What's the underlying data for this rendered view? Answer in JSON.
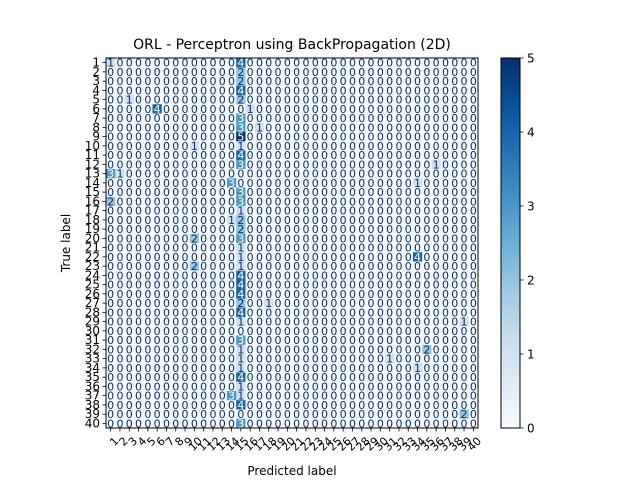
{
  "chart_data": {
    "type": "heatmap",
    "title": "ORL - Perceptron using BackPropagation (2D)",
    "xlabel": "Predicted label",
    "ylabel": "True label",
    "x_tick_labels": [
      "1",
      "2",
      "3",
      "4",
      "5",
      "6",
      "7",
      "8",
      "9",
      "10",
      "11",
      "12",
      "13",
      "14",
      "15",
      "16",
      "17",
      "18",
      "19",
      "20",
      "21",
      "22",
      "23",
      "24",
      "25",
      "26",
      "27",
      "28",
      "29",
      "30",
      "31",
      "32",
      "33",
      "34",
      "35",
      "36",
      "37",
      "38",
      "39",
      "40"
    ],
    "y_tick_labels": [
      "1",
      "2",
      "3",
      "4",
      "5",
      "6",
      "7",
      "8",
      "9",
      "10",
      "11",
      "12",
      "13",
      "14",
      "15",
      "16",
      "17",
      "18",
      "19",
      "20",
      "21",
      "22",
      "23",
      "24",
      "25",
      "26",
      "27",
      "28",
      "29",
      "30",
      "31",
      "32",
      "33",
      "34",
      "35",
      "36",
      "37",
      "38",
      "39",
      "40"
    ],
    "colormap": "Blues",
    "value_range": [
      0,
      5
    ],
    "colorbar_ticks": [
      "0",
      "1",
      "2",
      "3",
      "4",
      "5"
    ],
    "cell_text_color_dark": "#08306b",
    "cell_text_color_light": "#ffffff",
    "matrix_nonzero": [
      {
        "row": 1,
        "col": 1,
        "value": 1
      },
      {
        "row": 1,
        "col": 15,
        "value": 4
      },
      {
        "row": 2,
        "col": 15,
        "value": 2
      },
      {
        "row": 3,
        "col": 15,
        "value": 2
      },
      {
        "row": 4,
        "col": 15,
        "value": 4
      },
      {
        "row": 5,
        "col": 3,
        "value": 1
      },
      {
        "row": 5,
        "col": 15,
        "value": 2
      },
      {
        "row": 6,
        "col": 6,
        "value": 4
      },
      {
        "row": 6,
        "col": 16,
        "value": 1
      },
      {
        "row": 7,
        "col": 15,
        "value": 3
      },
      {
        "row": 8,
        "col": 15,
        "value": 3
      },
      {
        "row": 8,
        "col": 17,
        "value": 1
      },
      {
        "row": 9,
        "col": 15,
        "value": 5
      },
      {
        "row": 10,
        "col": 10,
        "value": 1
      },
      {
        "row": 10,
        "col": 15,
        "value": 1
      },
      {
        "row": 11,
        "col": 15,
        "value": 4
      },
      {
        "row": 12,
        "col": 15,
        "value": 3
      },
      {
        "row": 12,
        "col": 36,
        "value": 1
      },
      {
        "row": 13,
        "col": 1,
        "value": 3
      },
      {
        "row": 13,
        "col": 2,
        "value": 1
      },
      {
        "row": 14,
        "col": 14,
        "value": 3
      },
      {
        "row": 14,
        "col": 34,
        "value": 1
      },
      {
        "row": 15,
        "col": 15,
        "value": 3
      },
      {
        "row": 16,
        "col": 1,
        "value": 2
      },
      {
        "row": 16,
        "col": 15,
        "value": 3
      },
      {
        "row": 17,
        "col": 15,
        "value": 1
      },
      {
        "row": 18,
        "col": 14,
        "value": 1
      },
      {
        "row": 18,
        "col": 15,
        "value": 2
      },
      {
        "row": 19,
        "col": 15,
        "value": 2
      },
      {
        "row": 20,
        "col": 10,
        "value": 2
      },
      {
        "row": 20,
        "col": 15,
        "value": 3
      },
      {
        "row": 21,
        "col": 15,
        "value": 1
      },
      {
        "row": 22,
        "col": 15,
        "value": 1
      },
      {
        "row": 22,
        "col": 34,
        "value": 4
      },
      {
        "row": 23,
        "col": 10,
        "value": 2
      },
      {
        "row": 23,
        "col": 15,
        "value": 1
      },
      {
        "row": 24,
        "col": 15,
        "value": 4
      },
      {
        "row": 25,
        "col": 15,
        "value": 4
      },
      {
        "row": 26,
        "col": 15,
        "value": 4
      },
      {
        "row": 27,
        "col": 15,
        "value": 2
      },
      {
        "row": 27,
        "col": 18,
        "value": 1
      },
      {
        "row": 28,
        "col": 15,
        "value": 4
      },
      {
        "row": 29,
        "col": 15,
        "value": 1
      },
      {
        "row": 29,
        "col": 39,
        "value": 1
      },
      {
        "row": 30,
        "col": 15,
        "value": 0
      },
      {
        "row": 31,
        "col": 15,
        "value": 3
      },
      {
        "row": 32,
        "col": 15,
        "value": 1
      },
      {
        "row": 32,
        "col": 35,
        "value": 2
      },
      {
        "row": 33,
        "col": 15,
        "value": 1
      },
      {
        "row": 33,
        "col": 31,
        "value": 1
      },
      {
        "row": 34,
        "col": 15,
        "value": 1
      },
      {
        "row": 34,
        "col": 34,
        "value": 1
      },
      {
        "row": 35,
        "col": 15,
        "value": 4
      },
      {
        "row": 36,
        "col": 15,
        "value": 1
      },
      {
        "row": 37,
        "col": 14,
        "value": 3
      },
      {
        "row": 37,
        "col": 15,
        "value": 1
      },
      {
        "row": 38,
        "col": 15,
        "value": 4
      },
      {
        "row": 39,
        "col": 39,
        "value": 2
      },
      {
        "row": 40,
        "col": 15,
        "value": 3
      }
    ]
  }
}
